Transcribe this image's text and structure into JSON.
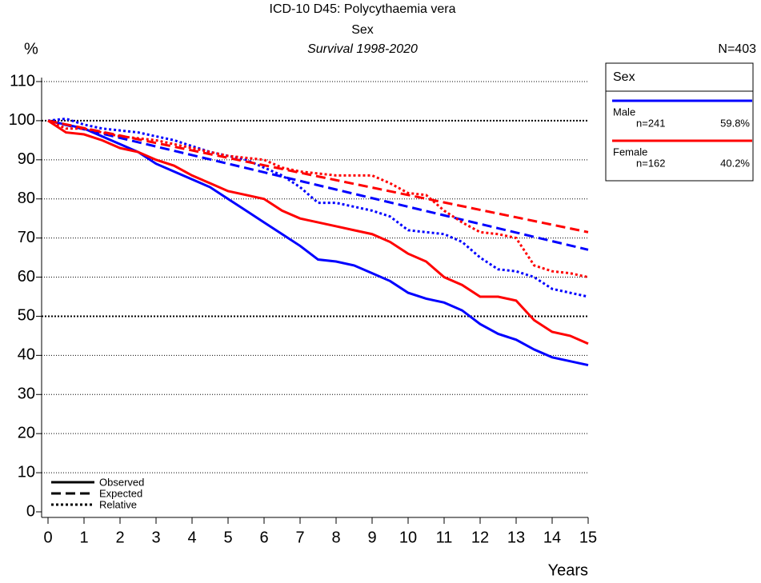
{
  "chart_data": {
    "type": "line",
    "title": "ICD-10 D45: Polycythaemia vera",
    "subtitle": "Sex",
    "period": "Survival 1998-2020",
    "total": "N=403",
    "y_label": "%",
    "x_label": "Years",
    "legend_title": "Sex",
    "line_styles": [
      "Observed",
      "Expected",
      "Relative"
    ],
    "x": [
      0,
      0.5,
      1,
      1.5,
      2,
      2.5,
      3,
      3.5,
      4,
      4.5,
      5,
      5.5,
      6,
      6.5,
      7,
      7.5,
      8,
      8.5,
      9,
      9.5,
      10,
      10.5,
      11,
      11.5,
      12,
      12.5,
      13,
      13.5,
      14,
      14.5,
      15
    ],
    "series": [
      {
        "name": "Male",
        "color": "#0000ff",
        "count": "n=241",
        "share": {
          "value": 59.8,
          "label": "59.8%"
        },
        "observed": [
          100,
          99,
          98,
          96,
          94,
          92,
          89,
          87,
          85,
          83,
          80,
          77,
          74,
          71,
          68,
          64.5,
          64,
          63,
          61,
          59,
          56,
          54.5,
          53.5,
          51.5,
          48,
          45.5,
          44,
          41.5,
          39.5,
          38.5,
          37.5
        ],
        "expected": [
          100,
          98.9,
          97.8,
          96.7,
          95.6,
          94.5,
          93.4,
          92.3,
          91.2,
          90.1,
          89,
          87.9,
          86.8,
          85.7,
          84.6,
          83.5,
          82.4,
          81.3,
          80.2,
          79.1,
          78,
          76.9,
          75.8,
          74.7,
          73.6,
          72.5,
          71.4,
          70.3,
          69.2,
          68.1,
          67
        ],
        "relative": [
          100,
          100.5,
          99,
          98,
          97.5,
          97,
          96,
          95,
          93.5,
          92,
          91,
          90,
          88,
          86,
          83,
          79,
          79,
          78,
          77,
          75.5,
          72,
          71.5,
          71,
          69,
          65,
          62,
          61.5,
          60,
          57,
          56,
          55
        ]
      },
      {
        "name": "Female",
        "color": "#ff0000",
        "count": "n=162",
        "share": {
          "value": 40.2,
          "label": "40.2%"
        },
        "observed": [
          100,
          97,
          96.5,
          95,
          93,
          92,
          90,
          88.5,
          86,
          84,
          82,
          81,
          80,
          77,
          75,
          74,
          73,
          72,
          71,
          69,
          66,
          64,
          60,
          58,
          55,
          55,
          54,
          49,
          46,
          45,
          43
        ],
        "expected": [
          100,
          99.05,
          98.1,
          97.15,
          96.2,
          95.25,
          94.3,
          93.35,
          92.4,
          91.45,
          90.5,
          89.55,
          88.6,
          87.65,
          86.7,
          85.75,
          84.8,
          83.85,
          82.9,
          81.95,
          81,
          80.05,
          79.1,
          78.15,
          77.2,
          76.25,
          75.3,
          74.35,
          73.4,
          72.45,
          71.5
        ],
        "relative": [
          100,
          98,
          98,
          97,
          96,
          95.5,
          95,
          94,
          93,
          92,
          91,
          90.5,
          90,
          88,
          87,
          86.5,
          86,
          86,
          86,
          84,
          81.5,
          81,
          77,
          74,
          71.5,
          71,
          70,
          63,
          61.5,
          61,
          60
        ]
      }
    ],
    "xlim": [
      0,
      15
    ],
    "xticks": [
      0,
      1,
      2,
      3,
      4,
      5,
      6,
      7,
      8,
      9,
      10,
      11,
      12,
      13,
      14,
      15
    ],
    "ylim": [
      0,
      110
    ],
    "yticks": [
      0,
      10,
      20,
      30,
      40,
      50,
      60,
      70,
      80,
      90,
      100,
      110
    ],
    "grid": true
  }
}
